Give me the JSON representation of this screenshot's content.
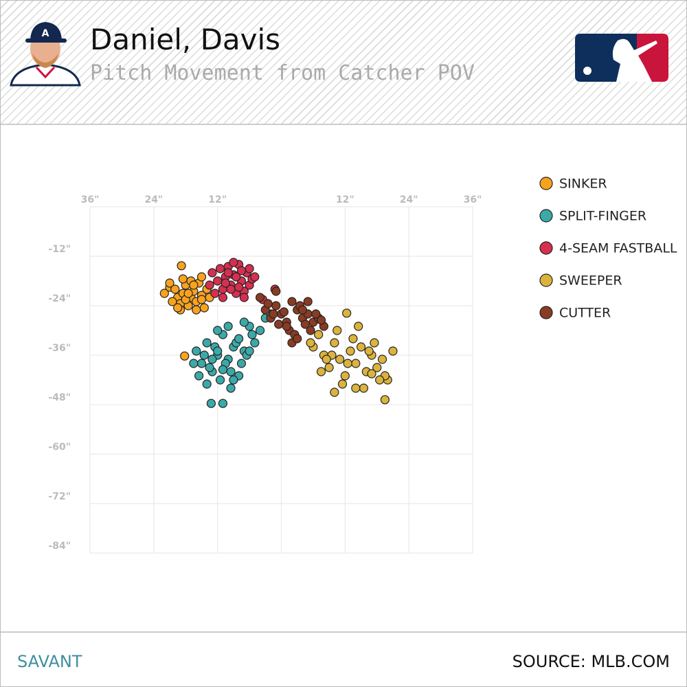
{
  "header": {
    "title": "Daniel, Davis",
    "subtitle": "Pitch Movement from Catcher POV"
  },
  "chart_data": {
    "type": "scatter",
    "xlim": [
      -36,
      36
    ],
    "ylim": [
      -84,
      0
    ],
    "xticks": [
      {
        "value": -36,
        "label": "36\""
      },
      {
        "value": -24,
        "label": "24\""
      },
      {
        "value": -12,
        "label": "12\""
      },
      {
        "value": 0,
        "label": null
      },
      {
        "value": 12,
        "label": "12\""
      },
      {
        "value": 24,
        "label": "24\""
      },
      {
        "value": 36,
        "label": "36\""
      }
    ],
    "yticks": [
      {
        "value": -12,
        "label": "-12\""
      },
      {
        "value": -24,
        "label": "-24\""
      },
      {
        "value": -36,
        "label": "-36\""
      },
      {
        "value": -48,
        "label": "-48\""
      },
      {
        "value": -60,
        "label": "-60\""
      },
      {
        "value": -72,
        "label": "-72\""
      },
      {
        "value": -84,
        "label": "-84\""
      }
    ],
    "grid": true,
    "legend": "right",
    "series": [
      {
        "name": "SINKER",
        "color": "#f8a21e",
        "x": [
          -22,
          -21,
          -20,
          -19.5,
          -19,
          -18.5,
          -18,
          -17.5,
          -17,
          -16.5,
          -16,
          -15.5,
          -15,
          -14.5,
          -14,
          -20.5,
          -19,
          -18,
          -17,
          -16,
          -15,
          -21,
          -18.5,
          -17.5,
          -16.5,
          -15,
          -18.8,
          -18.2,
          -19.5,
          -13.5
        ],
        "values": [
          -21,
          -19.5,
          -20,
          -22,
          -23.5,
          -21,
          -19,
          -24,
          -22,
          -20.5,
          -23,
          -18.5,
          -21.5,
          -24.5,
          -20,
          -23,
          -25,
          -22.5,
          -18,
          -25,
          -22.5,
          -18.5,
          -17.5,
          -21,
          -19,
          -17,
          -14.3,
          -36.2,
          -24.5,
          -22
        ]
      },
      {
        "name": "SPLIT-FINGER",
        "color": "#3ba9a8",
        "x": [
          -16,
          -15,
          -14,
          -13,
          -12,
          -11,
          -10,
          -9,
          -8,
          -7,
          -6,
          -5,
          -4,
          -3,
          -2,
          -15.5,
          -14.5,
          -13.5,
          -12.5,
          -11.5,
          -10.5,
          -9.5,
          -8.5,
          -7.5,
          -6.5,
          -5.5,
          -14,
          -12,
          -10,
          -8,
          -6,
          -13,
          -11,
          -9,
          -7,
          -16.5,
          -12,
          -9.5,
          -13.2,
          -11
        ],
        "values": [
          -35,
          -38,
          -33,
          -40,
          -36,
          -31,
          -37,
          -34,
          -41,
          -35,
          -29,
          -33,
          -30,
          -27,
          -26,
          -41,
          -36,
          -39,
          -34,
          -42,
          -38,
          -40,
          -33,
          -38,
          -36,
          -31,
          -43,
          -30,
          -29,
          -32,
          -35,
          -37,
          -39.5,
          -42,
          -28,
          -38,
          -35,
          -44,
          -47.7,
          -47.7
        ]
      },
      {
        "name": "4-SEAM FASTBALL",
        "color": "#d5304f",
        "x": [
          -13,
          -12,
          -11.5,
          -11,
          -10.5,
          -10,
          -9.5,
          -9,
          -8.5,
          -8,
          -7.5,
          -7,
          -6.5,
          -6,
          -5.5,
          -12.5,
          -11,
          -10,
          -9,
          -8,
          -7,
          -6,
          -13.5,
          -9.5,
          -8.5,
          -7.5,
          -10.5,
          -5,
          -1.2,
          -3.5
        ],
        "values": [
          -16,
          -18,
          -15,
          -20,
          -17,
          -14.5,
          -19,
          -16.5,
          -21,
          -14,
          -18,
          -20.5,
          -16,
          -19,
          -17.5,
          -21,
          -22,
          -16,
          -13.5,
          -19.5,
          -22,
          -15,
          -19,
          -20,
          -17,
          -15.5,
          -18.5,
          -17,
          -20,
          -22.5
        ]
      },
      {
        "name": "SWEEPER",
        "color": "#dbb33d",
        "x": [
          6,
          7,
          8,
          9,
          10,
          11,
          12,
          13,
          14,
          15,
          16,
          17,
          18,
          19,
          20,
          7.5,
          9.5,
          11.5,
          13.5,
          15.5,
          17.5,
          19.5,
          8.5,
          10.5,
          12.5,
          14.5,
          16.5,
          18.5,
          12.3,
          19.5,
          10,
          14,
          17,
          21,
          5.5
        ],
        "values": [
          -34,
          -31,
          -36,
          -39,
          -33,
          -37,
          -41,
          -35,
          -38,
          -34,
          -40,
          -36,
          -39,
          -37,
          -42,
          -40,
          -36,
          -43,
          -32,
          -44,
          -33,
          -41,
          -37,
          -30,
          -38,
          -29,
          -35,
          -42,
          -25.8,
          -46.8,
          -45,
          -44,
          -40.5,
          -35,
          -33
        ]
      },
      {
        "name": "CUTTER",
        "color": "#8a3b23",
        "x": [
          -3,
          -2,
          -1,
          0,
          1,
          2,
          3,
          4,
          5,
          6,
          7,
          8,
          -2.5,
          -0.5,
          1.5,
          3.5,
          5.5,
          7.5,
          0.5,
          2.5,
          4.5,
          6.5,
          -1.5,
          2,
          4,
          3,
          1,
          5,
          -4,
          -1
        ],
        "values": [
          -25,
          -27,
          -24,
          -26,
          -28,
          -23,
          -25,
          -27,
          -26,
          -28,
          -27,
          -29,
          -23.5,
          -28.5,
          -30,
          -24,
          -30,
          -27.5,
          -25.5,
          -31,
          -28.5,
          -26,
          -26,
          -33,
          -25,
          -32,
          -29,
          -23,
          -22,
          -20.5
        ]
      }
    ]
  },
  "footer": {
    "left": "SAVANT",
    "right": "SOURCE: MLB.COM"
  }
}
